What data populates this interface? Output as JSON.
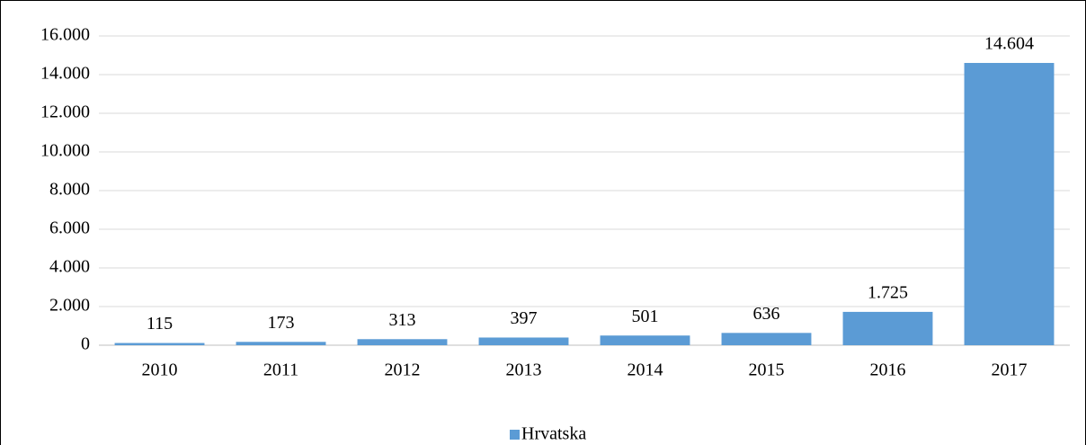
{
  "chart_data": {
    "type": "bar",
    "categories": [
      "2010",
      "2011",
      "2012",
      "2013",
      "2014",
      "2015",
      "2016",
      "2017"
    ],
    "series": [
      {
        "name": "Hrvatska",
        "color": "#5b9bd5",
        "values": [
          115,
          173,
          313,
          397,
          501,
          636,
          1725,
          14604
        ],
        "value_labels": [
          "115",
          "173",
          "313",
          "397",
          "501",
          "636",
          "1.725",
          "14.604"
        ]
      }
    ],
    "ylim": [
      0,
      16000
    ],
    "yticks": [
      0,
      {
        "value": 2000,
        "label": "2.000"
      },
      {
        "value": 4000,
        "label": "4.000"
      },
      {
        "value": 6000,
        "label": "6.000"
      },
      {
        "value": 8000,
        "label": "8.000"
      },
      {
        "value": 10000,
        "label": "10.000"
      },
      {
        "value": 12000,
        "label": "12.000"
      },
      {
        "value": 14000,
        "label": "14.000"
      },
      {
        "value": 16000,
        "label": "16.000"
      }
    ],
    "grid": true,
    "legend": "bottom"
  }
}
